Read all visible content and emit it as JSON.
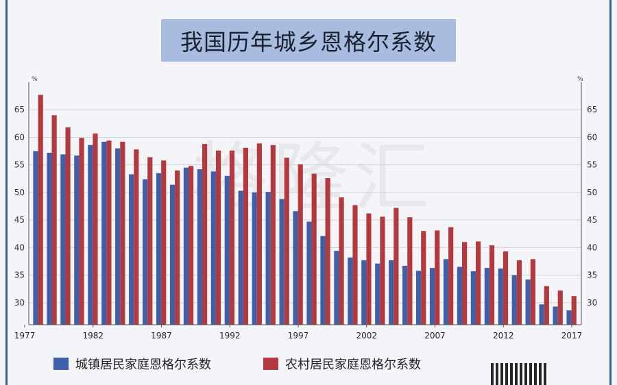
{
  "title": "我国历年城乡恩格尔系数",
  "watermark": "格隆汇",
  "colors": {
    "urban": "#3f5fa8",
    "rural": "#b23a3f",
    "grid": "#cfd3db",
    "axis": "#555555"
  },
  "chart_data": {
    "type": "bar",
    "title": "我国历年城乡恩格尔系数",
    "ylabel": "%",
    "ylim": [
      26,
      70
    ],
    "yticks": [
      30,
      35,
      40,
      45,
      50,
      55,
      60,
      65
    ],
    "xticks": [
      "1977",
      "1982",
      "1987",
      "1992",
      "1997",
      "2002",
      "2007",
      "2012",
      "2017"
    ],
    "grid": true,
    "legend": "bottom",
    "categories": [
      "1978",
      "1979",
      "1980",
      "1981",
      "1982",
      "1983",
      "1984",
      "1985",
      "1986",
      "1987",
      "1988",
      "1989",
      "1990",
      "1991",
      "1992",
      "1993",
      "1994",
      "1995",
      "1996",
      "1997",
      "1998",
      "1999",
      "2000",
      "2001",
      "2002",
      "2003",
      "2004",
      "2005",
      "2006",
      "2007",
      "2008",
      "2009",
      "2010",
      "2011",
      "2012",
      "2013",
      "2014",
      "2015",
      "2016",
      "2017"
    ],
    "series": [
      {
        "name": "城镇居民家庭恩格尔系数",
        "color": "#3f5fa8",
        "values": [
          57.5,
          57.2,
          56.9,
          56.7,
          58.6,
          59.2,
          58.0,
          53.3,
          52.4,
          53.5,
          51.4,
          54.5,
          54.2,
          53.8,
          53.0,
          50.3,
          50.0,
          50.1,
          48.8,
          46.6,
          44.7,
          42.1,
          39.4,
          38.2,
          37.7,
          37.1,
          37.7,
          36.7,
          35.8,
          36.3,
          37.9,
          36.5,
          35.7,
          36.3,
          36.2,
          35.0,
          34.2,
          29.7,
          29.3,
          28.6
        ]
      },
      {
        "name": "农村居民家庭恩格尔系数",
        "color": "#b23a3f",
        "values": [
          67.7,
          64.0,
          61.8,
          59.9,
          60.7,
          59.4,
          59.2,
          57.8,
          56.4,
          55.8,
          54.0,
          54.8,
          58.8,
          57.6,
          57.6,
          58.1,
          58.9,
          58.6,
          56.3,
          55.1,
          53.4,
          52.6,
          49.1,
          47.7,
          46.2,
          45.6,
          47.2,
          45.5,
          43.0,
          43.1,
          43.7,
          41.0,
          41.1,
          40.4,
          39.3,
          37.7,
          37.9,
          33.0,
          32.2,
          31.2
        ]
      }
    ]
  }
}
